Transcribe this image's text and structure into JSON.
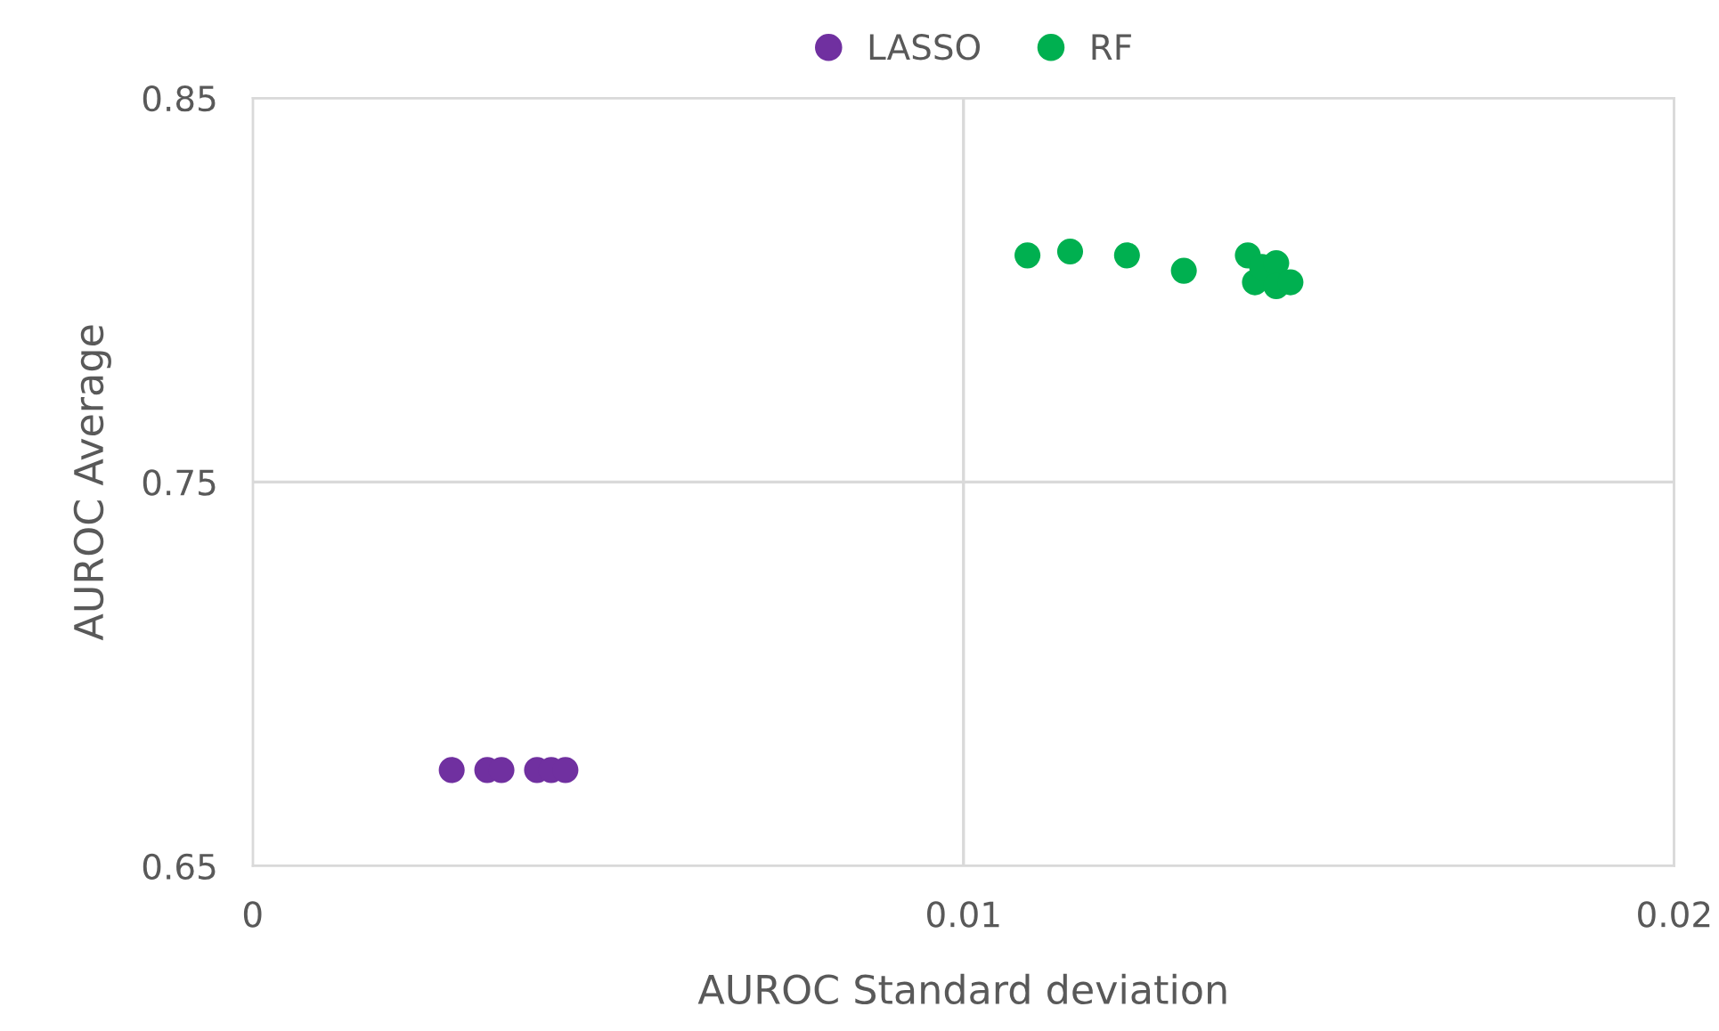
{
  "chart_data": {
    "type": "scatter",
    "xlabel": "AUROC Standard deviation",
    "ylabel": "AUROC Average",
    "xlim": [
      0,
      0.02
    ],
    "xticks": [
      0,
      0.01,
      0.02
    ],
    "ylim": [
      0.65,
      0.85
    ],
    "yticks": [
      0.65,
      0.75,
      0.85
    ],
    "grid": true,
    "legend": "top",
    "marker": "circle",
    "series": [
      {
        "name": "LASSO",
        "color": "#7030a0",
        "x": [
          0.0028,
          0.0033,
          0.0035,
          0.004,
          0.0042,
          0.0044
        ],
        "values": [
          0.675,
          0.675,
          0.675,
          0.675,
          0.675,
          0.675
        ]
      },
      {
        "name": "RF",
        "color": "#00b050",
        "x": [
          0.0109,
          0.0115,
          0.0123,
          0.0131,
          0.014,
          0.0141,
          0.0142,
          0.0144,
          0.0144,
          0.0146
        ],
        "values": [
          0.809,
          0.81,
          0.809,
          0.805,
          0.809,
          0.802,
          0.806,
          0.807,
          0.801,
          0.802
        ]
      }
    ]
  }
}
